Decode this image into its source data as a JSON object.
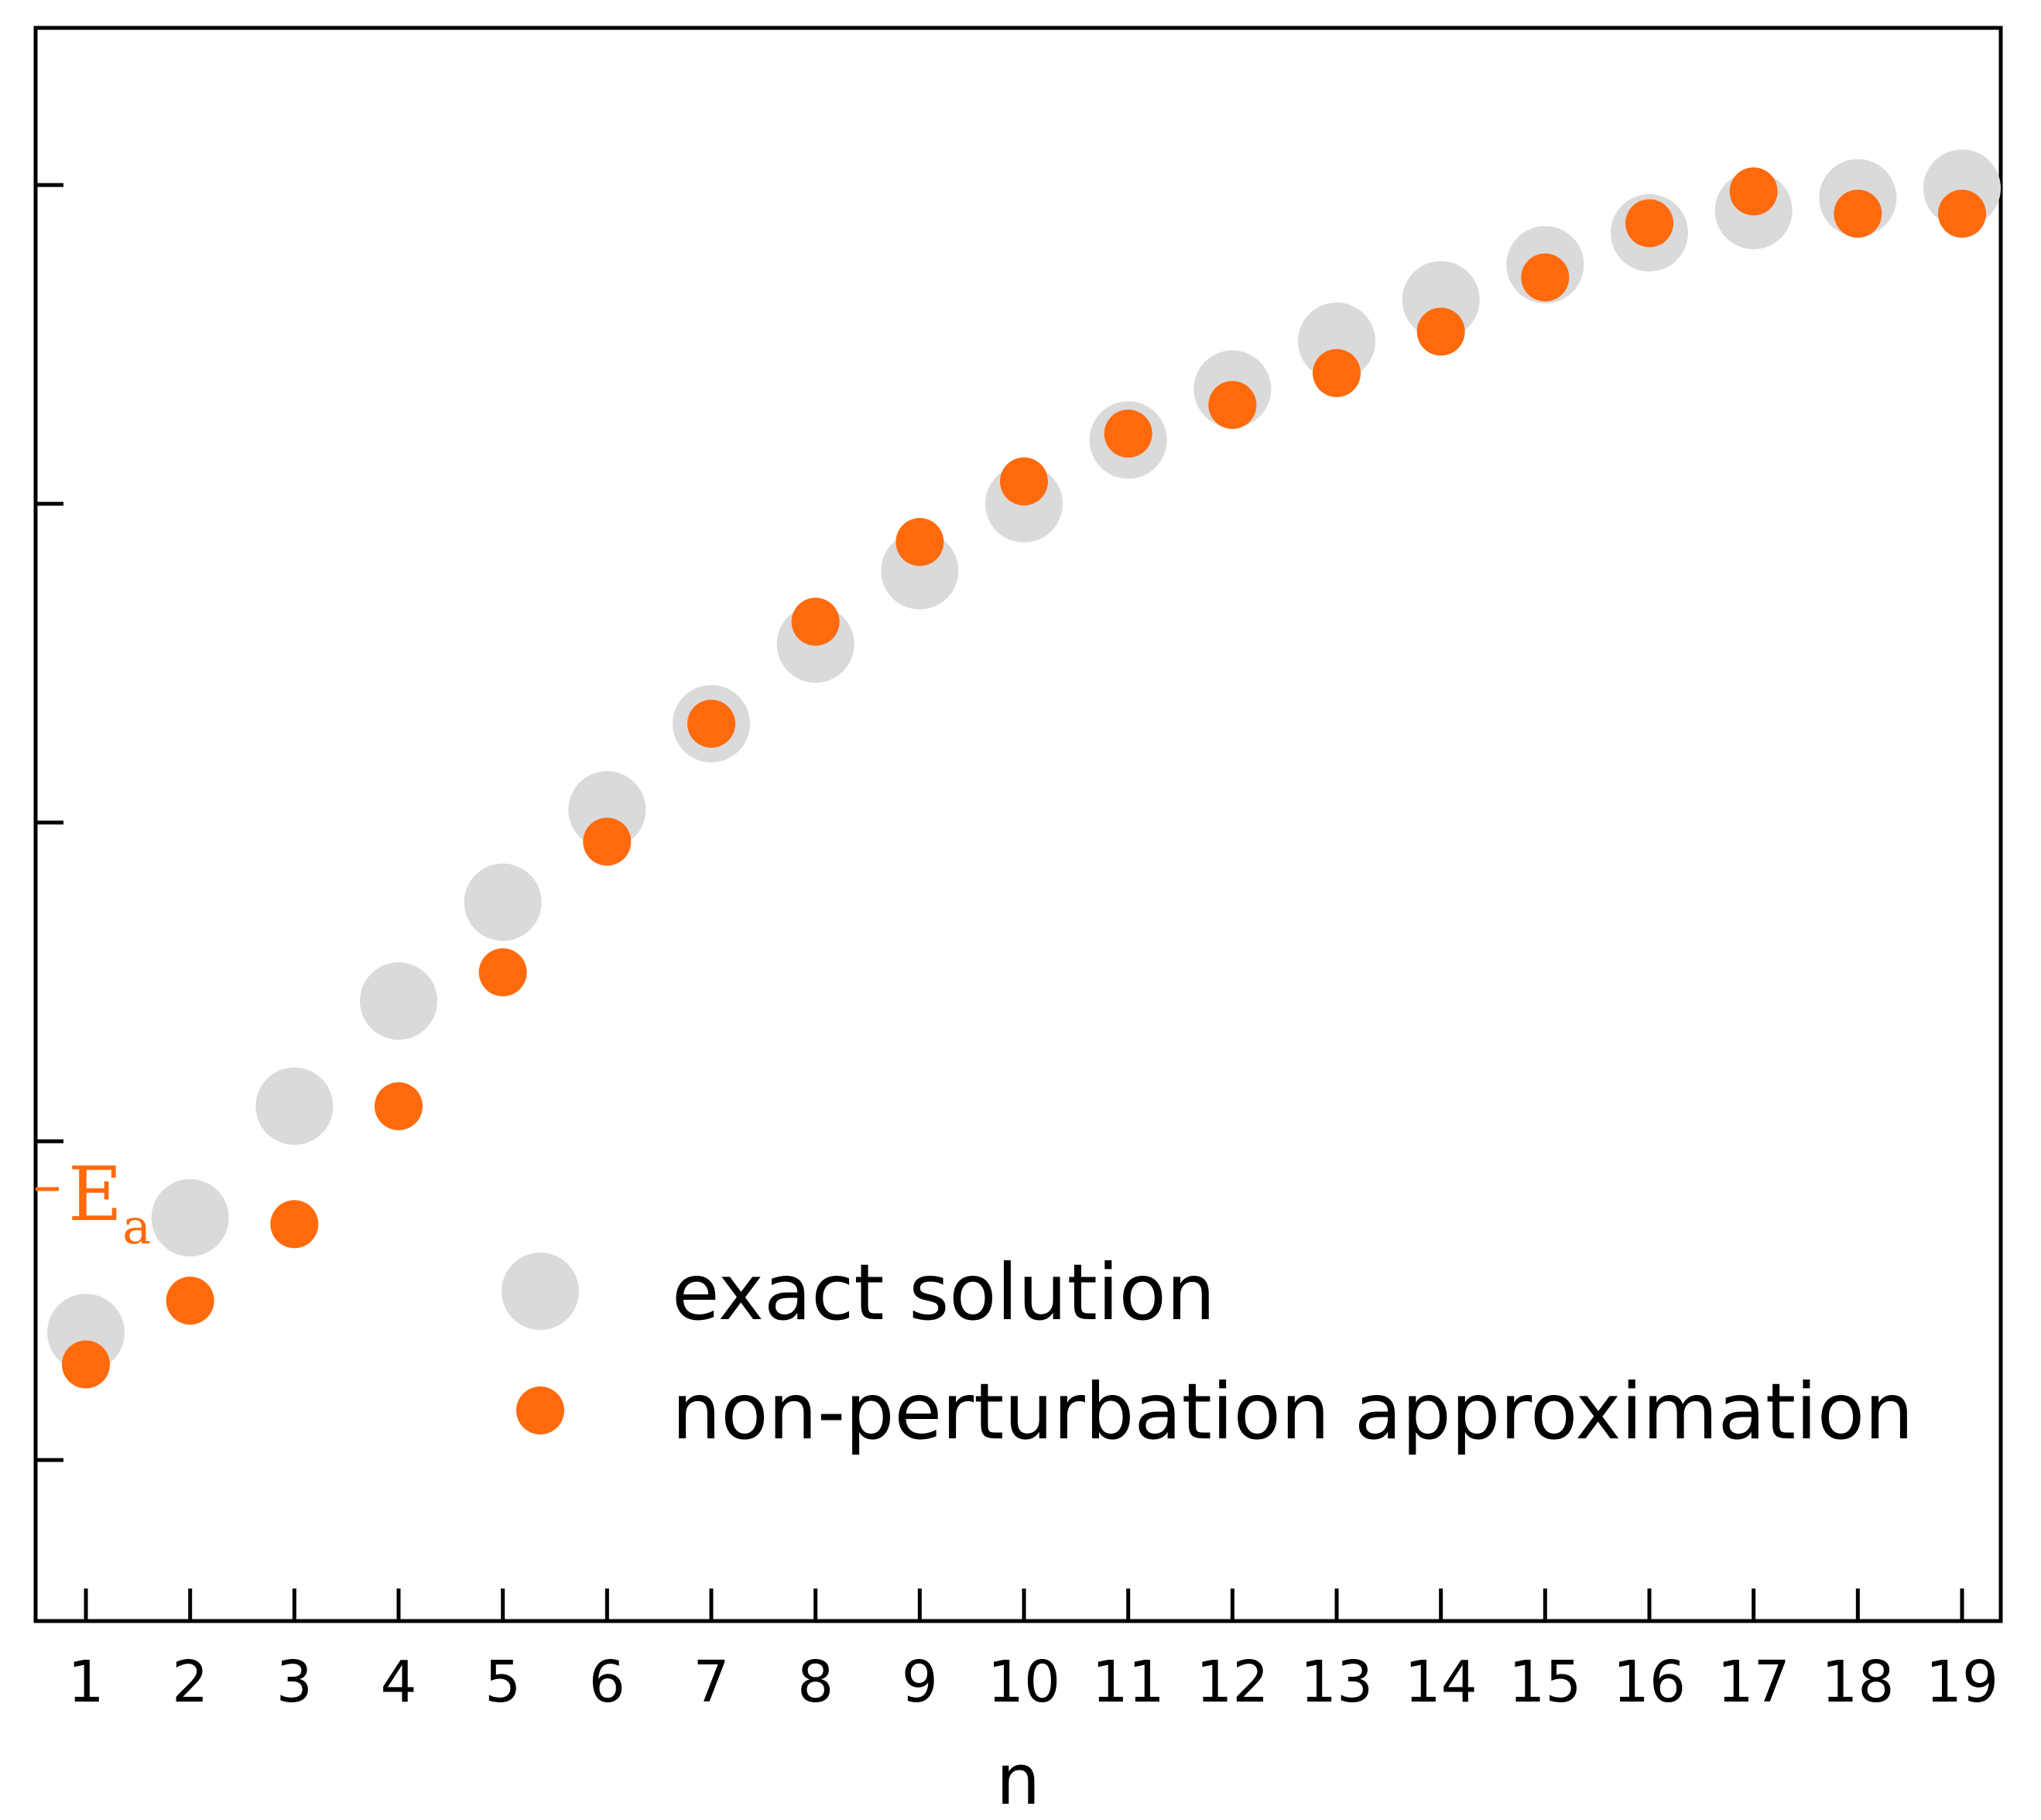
{
  "chart_data": {
    "type": "scatter",
    "xlabel": "n",
    "ylabel": "",
    "x": [
      1,
      2,
      3,
      4,
      5,
      6,
      7,
      8,
      9,
      10,
      11,
      12,
      13,
      14,
      15,
      16,
      17,
      18,
      19
    ],
    "xlim": [
      0.5,
      19.5
    ],
    "ylim": [
      -0.25,
      4.75
    ],
    "yticks": [
      0,
      1,
      2,
      3,
      4
    ],
    "ytick_labels_shown": false,
    "grid": false,
    "legend_position": "lower-right",
    "reference": {
      "label": "E",
      "subscript": "a",
      "value": 0.85,
      "color": "#FF6A0D"
    },
    "series": [
      {
        "name": "exact solution",
        "color": "#DADADA",
        "marker": "large-circle",
        "values": [
          0.4,
          0.76,
          1.11,
          1.44,
          1.75,
          2.04,
          2.31,
          2.56,
          2.79,
          3.0,
          3.2,
          3.36,
          3.51,
          3.64,
          3.75,
          3.85,
          3.92,
          3.96,
          3.99
        ]
      },
      {
        "name": "non-perturbation approximation",
        "color": "#FF6A0D",
        "marker": "circle",
        "values": [
          0.3,
          0.5,
          0.74,
          1.11,
          1.53,
          1.94,
          2.31,
          2.63,
          2.88,
          3.07,
          3.22,
          3.31,
          3.41,
          3.54,
          3.71,
          3.88,
          3.98,
          3.91,
          3.91
        ]
      }
    ]
  }
}
